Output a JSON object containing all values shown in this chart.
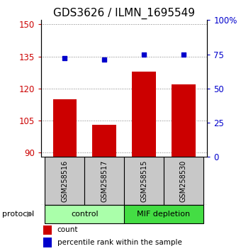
{
  "title": "GDS3626 / ILMN_1695549",
  "samples": [
    "GSM258516",
    "GSM258517",
    "GSM258515",
    "GSM258530"
  ],
  "bar_values": [
    115,
    103,
    128,
    122
  ],
  "percentile_values": [
    72,
    71,
    75,
    75
  ],
  "bar_color": "#cc0000",
  "dot_color": "#0000cc",
  "ylim_left": [
    88,
    152
  ],
  "ylim_right": [
    0,
    100
  ],
  "yticks_left": [
    90,
    105,
    120,
    135,
    150
  ],
  "yticks_right": [
    0,
    25,
    50,
    75,
    100
  ],
  "ytick_labels_right": [
    "0",
    "25",
    "50",
    "75",
    "100%"
  ],
  "groups": [
    {
      "label": "control",
      "indices": [
        0,
        1
      ],
      "color": "#aaffaa"
    },
    {
      "label": "MIF depletion",
      "indices": [
        2,
        3
      ],
      "color": "#44dd44"
    }
  ],
  "protocol_label": "protocol",
  "legend_count_label": "count",
  "legend_pct_label": "percentile rank within the sample",
  "bar_color_legend": "#cc0000",
  "dot_color_legend": "#0000cc",
  "bar_width": 0.6,
  "bar_bottom": 88,
  "title_fontsize": 11,
  "tick_fontsize": 8.5,
  "sample_fontsize": 7,
  "group_fontsize": 8,
  "legend_fontsize": 7.5
}
